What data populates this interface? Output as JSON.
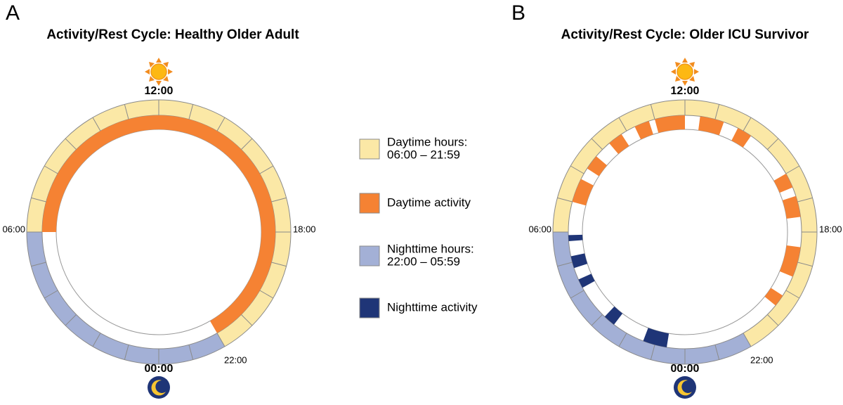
{
  "panels": [
    {
      "label": "A",
      "title": "Activity/Rest Cycle: Healthy Older Adult",
      "hour_labels": {
        "top": "12:00",
        "bottom": "00:00",
        "left": "06:00",
        "right": "18:00",
        "night_start": "22:00"
      },
      "day_hours": [
        6,
        22
      ],
      "day_activity": [
        [
          6,
          22
        ]
      ],
      "night_activity": []
    },
    {
      "label": "B",
      "title": "Activity/Rest Cycle: Older ICU Survivor",
      "hour_labels": {
        "top": "12:00",
        "bottom": "00:00",
        "left": "06:00",
        "right": "18:00",
        "night_start": "22:00"
      },
      "day_hours": [
        6,
        22
      ],
      "day_activity": [
        [
          7.0,
          7.8
        ],
        [
          8.2,
          8.7
        ],
        [
          9.3,
          9.8
        ],
        [
          10.3,
          10.8
        ],
        [
          11.0,
          12.0
        ],
        [
          12.5,
          13.3
        ],
        [
          13.8,
          14.3
        ],
        [
          16.0,
          16.5
        ],
        [
          16.8,
          17.5
        ],
        [
          18.5,
          19.5
        ],
        [
          20.2,
          20.6
        ]
      ],
      "night_activity": [
        [
          0.6,
          1.4
        ],
        [
          2.5,
          2.9
        ],
        [
          4.1,
          4.4
        ],
        [
          4.8,
          5.2
        ],
        [
          5.7,
          5.9
        ]
      ]
    }
  ],
  "legend": [
    {
      "lines": [
        "Daytime hours:",
        "06:00 – 21:59"
      ],
      "color": "#fbe8a6"
    },
    {
      "lines": [
        "Daytime activity"
      ],
      "color": "#f58233"
    },
    {
      "lines": [
        "Nighttime hours:",
        "22:00 – 05:59"
      ],
      "color": "#a3b0d6"
    },
    {
      "lines": [
        "Nighttime activity"
      ],
      "color": "#1f3577"
    }
  ]
}
